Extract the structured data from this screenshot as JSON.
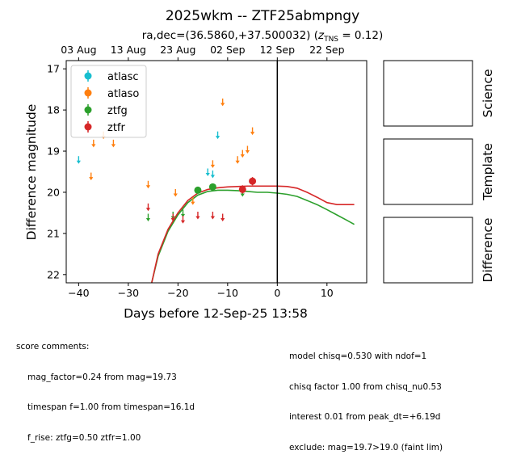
{
  "chart_data": {
    "type": "scatter",
    "title": "2025wkm -- ZTF25abmpngy",
    "subtitle_prefix": "ra,dec=(36.5860,+37.500032) (",
    "subtitle_z": "z",
    "subtitle_sub": "TNS",
    "subtitle_suffix": " = 0.12)",
    "xlabel": "Days before 12-Sep-25 13:58",
    "ylabel": "Difference magnitude",
    "xlim": [
      -42.5,
      18
    ],
    "ylim": [
      22.2,
      16.8
    ],
    "x_ticks": [
      -40,
      -30,
      -20,
      -10,
      0,
      10
    ],
    "x_tick_labels": [
      "−40",
      "−30",
      "−20",
      "−10",
      "0",
      "10"
    ],
    "y_ticks": [
      17,
      18,
      19,
      20,
      21,
      22
    ],
    "y_tick_labels": [
      "17",
      "18",
      "19",
      "20",
      "21",
      "22"
    ],
    "top_ticks": [
      -40,
      -30,
      -20,
      -10,
      0,
      10
    ],
    "top_tick_labels": [
      "03 Aug",
      "13 Aug",
      "23 Aug",
      "02 Sep",
      "12 Sep",
      "22 Sep"
    ],
    "vline_x": 0,
    "legend_position": "upper-left",
    "series": [
      {
        "name": "atlasc",
        "color": "#17becf",
        "upper_limits": [
          [
            -40,
            19.2
          ],
          [
            -12,
            18.6
          ],
          [
            -14,
            19.5
          ],
          [
            -13,
            19.55
          ]
        ],
        "points": []
      },
      {
        "name": "atlaso",
        "color": "#ff7f0e",
        "upper_limits": [
          [
            -37.5,
            19.6
          ],
          [
            -37,
            18.8
          ],
          [
            -35,
            18.6
          ],
          [
            -33,
            18.8
          ],
          [
            -26,
            19.8
          ],
          [
            -20.5,
            20.0
          ],
          [
            -17,
            20.2
          ],
          [
            -13,
            19.3
          ],
          [
            -11,
            17.8
          ],
          [
            -8,
            19.2
          ],
          [
            -7,
            19.05
          ],
          [
            -6,
            18.95
          ],
          [
            -5,
            18.5
          ]
        ],
        "points": []
      },
      {
        "name": "ztfg",
        "color": "#2ca02c",
        "upper_limits": [
          [
            -26,
            20.6
          ],
          [
            -21,
            20.55
          ],
          [
            -19,
            20.5
          ],
          [
            -7,
            20.0
          ]
        ],
        "points": [
          [
            -16,
            19.95,
            0.08
          ],
          [
            -13,
            19.87,
            0.08
          ]
        ]
      },
      {
        "name": "ztfr",
        "color": "#d62728",
        "upper_limits": [
          [
            -26,
            20.35
          ],
          [
            -21,
            20.6
          ],
          [
            -19,
            20.65
          ],
          [
            -16,
            20.55
          ],
          [
            -13,
            20.55
          ],
          [
            -11,
            20.6
          ]
        ],
        "points": [
          [
            -7,
            19.93,
            0.1
          ],
          [
            -5,
            19.73,
            0.1
          ]
        ]
      }
    ],
    "model_curves": [
      {
        "name": "ztfg",
        "color": "#2ca02c",
        "x": [
          -25.3,
          -24,
          -22,
          -20,
          -18,
          -16,
          -14,
          -12,
          -10,
          -8,
          -6,
          -4,
          -2,
          0,
          2,
          4,
          6,
          8,
          10,
          12,
          14,
          15.5
        ],
        "y": [
          22.2,
          21.55,
          20.95,
          20.55,
          20.25,
          20.07,
          19.98,
          19.95,
          19.95,
          19.96,
          19.98,
          20.0,
          20.0,
          20.02,
          20.05,
          20.1,
          20.2,
          20.3,
          20.42,
          20.55,
          20.68,
          20.78
        ]
      },
      {
        "name": "ztfr",
        "color": "#d62728",
        "x": [
          -25.3,
          -24,
          -22,
          -20,
          -18,
          -16,
          -14,
          -12,
          -10,
          -8,
          -6,
          -4,
          -2,
          0,
          2,
          4,
          6,
          8,
          10,
          12,
          14,
          15.5
        ],
        "y": [
          22.2,
          21.5,
          20.9,
          20.5,
          20.2,
          20.02,
          19.93,
          19.89,
          19.87,
          19.86,
          19.85,
          19.85,
          19.85,
          19.85,
          19.86,
          19.9,
          20.0,
          20.12,
          20.25,
          20.3,
          20.3,
          20.3
        ]
      }
    ],
    "side_panels": [
      "Science",
      "Template",
      "Difference"
    ]
  },
  "comments_left": {
    "header": "score comments:",
    "lines": [
      "mag_factor=0.24 from mag=19.73",
      "timespan f=1.00 from timespan=16.1d",
      "f_rise: ztfg=0.50 ztfr=1.00"
    ]
  },
  "comments_right": {
    "lines": [
      "model chisq=0.530 with ndof=1",
      "chisq factor 1.00 from chisq_nu0.53",
      "interest 0.01 from peak_dt=+6.19d",
      "exclude: mag=19.7>19.0 (faint lim)"
    ]
  }
}
